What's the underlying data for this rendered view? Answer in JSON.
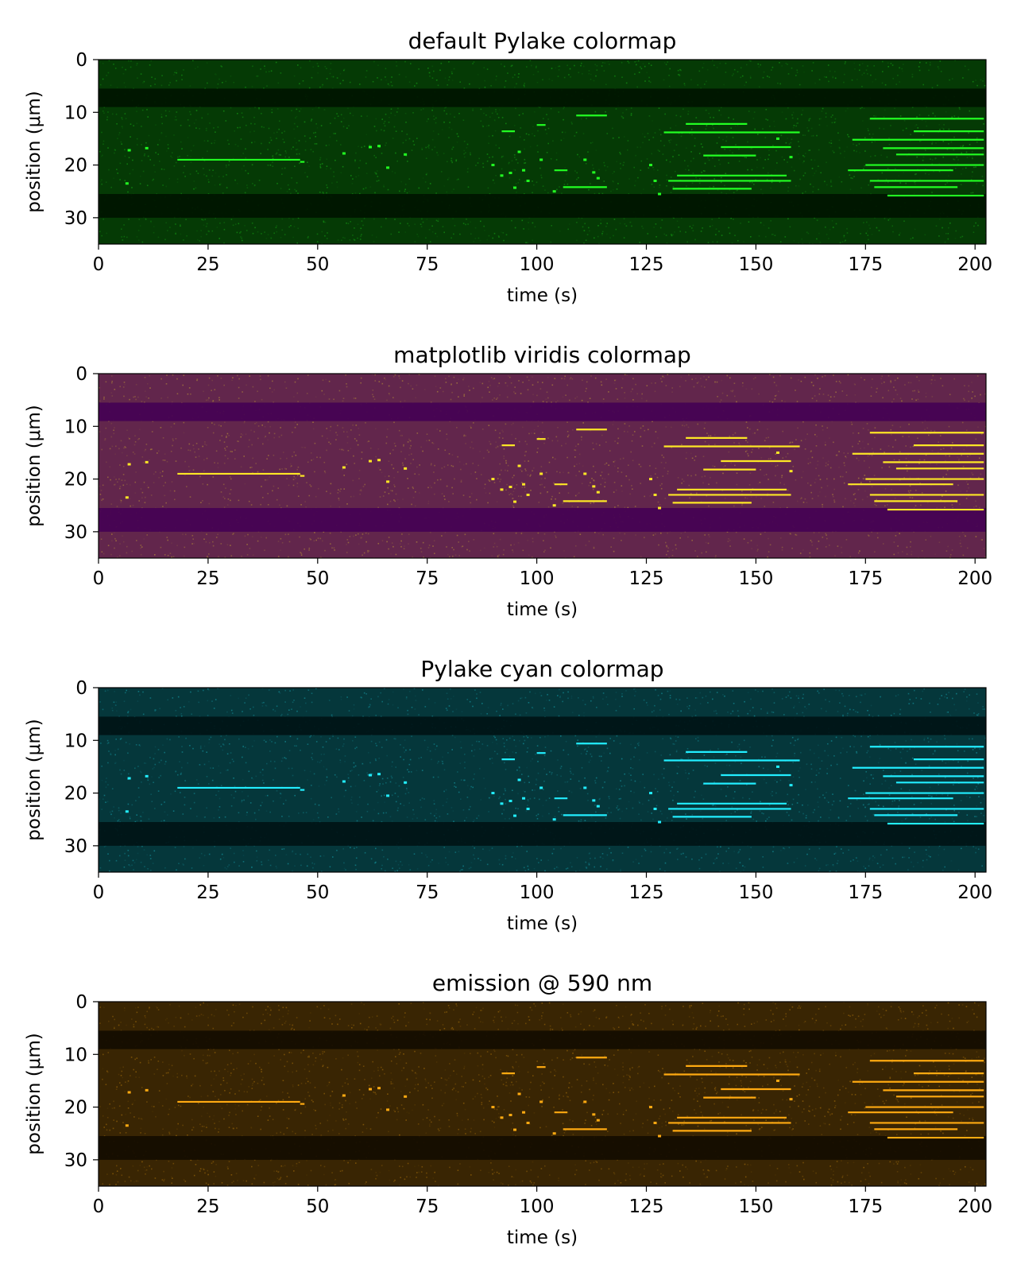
{
  "chart_data": [
    {
      "type": "heatmap",
      "title": "default Pylake colormap",
      "xlabel": "time (s)",
      "ylabel": "position (μm)",
      "xlim": [
        0,
        202.5
      ],
      "ylim": [
        35,
        0
      ],
      "xticks": [
        0,
        25,
        50,
        75,
        100,
        125,
        150,
        175,
        200
      ],
      "yticks": [
        0,
        10,
        20,
        30
      ],
      "colormap": {
        "low": "#001500",
        "high": "#22ff22"
      }
    },
    {
      "type": "heatmap",
      "title": "matplotlib viridis colormap",
      "xlabel": "time (s)",
      "ylabel": "position (μm)",
      "xlim": [
        0,
        202.5
      ],
      "ylim": [
        35,
        0
      ],
      "xticks": [
        0,
        25,
        50,
        75,
        100,
        125,
        150,
        175,
        200
      ],
      "yticks": [
        0,
        10,
        20,
        30
      ],
      "colormap": {
        "low": "#440154",
        "high": "#fde725"
      }
    },
    {
      "type": "heatmap",
      "title": "Pylake cyan colormap",
      "xlabel": "time (s)",
      "ylabel": "position (μm)",
      "xlim": [
        0,
        202.5
      ],
      "ylim": [
        35,
        0
      ],
      "xticks": [
        0,
        25,
        50,
        75,
        100,
        125,
        150,
        175,
        200
      ],
      "yticks": [
        0,
        10,
        20,
        30
      ],
      "colormap": {
        "low": "#001416",
        "high": "#22eeff"
      }
    },
    {
      "type": "heatmap",
      "title": "emission @ 590 nm",
      "xlabel": "time (s)",
      "ylabel": "position (μm)",
      "xlim": [
        0,
        202.5
      ],
      "ylim": [
        35,
        0
      ],
      "xticks": [
        0,
        25,
        50,
        75,
        100,
        125,
        150,
        175,
        200
      ],
      "yticks": [
        0,
        10,
        20,
        30
      ],
      "colormap": {
        "low": "#130c00",
        "high": "#ffaa11"
      }
    }
  ],
  "kymograph_features": {
    "dark_bands": [
      {
        "y0": 5.5,
        "y1": 9
      },
      {
        "y0": 25.5,
        "y1": 30
      }
    ],
    "tracks": [
      {
        "t0": 18,
        "t1": 46,
        "y": 19
      },
      {
        "t0": 46,
        "t1": 47,
        "y": 19.4
      },
      {
        "t0": 92,
        "t1": 95,
        "y": 13.6
      },
      {
        "t0": 100,
        "t1": 102,
        "y": 12.4
      },
      {
        "t0": 109,
        "t1": 116,
        "y": 10.6
      },
      {
        "t0": 106,
        "t1": 116,
        "y": 24.2
      },
      {
        "t0": 104,
        "t1": 107,
        "y": 21.0
      },
      {
        "t0": 129,
        "t1": 160,
        "y": 13.8
      },
      {
        "t0": 134,
        "t1": 148,
        "y": 12.2
      },
      {
        "t0": 130,
        "t1": 158,
        "y": 23.0
      },
      {
        "t0": 132,
        "t1": 157,
        "y": 22.0
      },
      {
        "t0": 131,
        "t1": 149,
        "y": 24.5
      },
      {
        "t0": 138,
        "t1": 150,
        "y": 18.2
      },
      {
        "t0": 142,
        "t1": 158,
        "y": 16.6
      },
      {
        "t0": 172,
        "t1": 202,
        "y": 15.2
      },
      {
        "t0": 176,
        "t1": 202,
        "y": 11.2
      },
      {
        "t0": 179,
        "t1": 202,
        "y": 16.8
      },
      {
        "t0": 175,
        "t1": 202,
        "y": 20.0
      },
      {
        "t0": 176,
        "t1": 202,
        "y": 23.0
      },
      {
        "t0": 180,
        "t1": 202,
        "y": 25.8
      },
      {
        "t0": 171,
        "t1": 195,
        "y": 21.0
      },
      {
        "t0": 182,
        "t1": 202,
        "y": 18.0
      },
      {
        "t0": 177,
        "t1": 196,
        "y": 24.2
      },
      {
        "t0": 186,
        "t1": 202,
        "y": 13.6
      }
    ],
    "dots": [
      [
        11,
        16.8
      ],
      [
        7,
        17.2
      ],
      [
        6.5,
        23.5
      ],
      [
        62,
        16.6
      ],
      [
        64,
        16.4
      ],
      [
        70,
        18.0
      ],
      [
        66,
        20.5
      ],
      [
        56,
        17.8
      ],
      [
        90,
        20.0
      ],
      [
        92,
        22.0
      ],
      [
        94,
        21.5
      ],
      [
        95,
        24.3
      ],
      [
        96,
        17.5
      ],
      [
        97,
        21.0
      ],
      [
        98,
        23.0
      ],
      [
        101,
        19.0
      ],
      [
        104,
        25.0
      ],
      [
        113,
        21.4
      ],
      [
        114,
        22.5
      ],
      [
        111,
        19.0
      ],
      [
        126,
        20.0
      ],
      [
        127,
        23.0
      ],
      [
        128,
        25.5
      ],
      [
        155,
        15.0
      ],
      [
        158,
        18.5
      ]
    ]
  }
}
